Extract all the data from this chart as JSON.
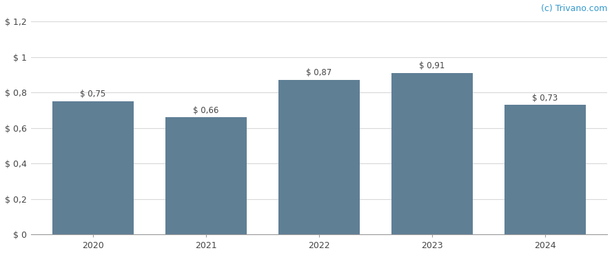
{
  "categories": [
    "2020",
    "2021",
    "2022",
    "2023",
    "2024"
  ],
  "values": [
    0.75,
    0.66,
    0.87,
    0.91,
    0.73
  ],
  "labels": [
    "$ 0,75",
    "$ 0,66",
    "$ 0,87",
    "$ 0,91",
    "$ 0,73"
  ],
  "bar_color": "#5f7f95",
  "background_color": "#ffffff",
  "ylim": [
    0,
    1.2
  ],
  "yticks": [
    0,
    0.2,
    0.4,
    0.6,
    0.8,
    1.0,
    1.2
  ],
  "ytick_labels": [
    "$ 0",
    "$ 0,2",
    "$ 0,4",
    "$ 0,6",
    "$ 0,8",
    "$ 1",
    "$ 1,2"
  ],
  "grid_color": "#d8d8d8",
  "watermark": "(c) Trivano.com",
  "watermark_color": "#3399cc",
  "label_fontsize": 8.5,
  "tick_fontsize": 9,
  "watermark_fontsize": 9,
  "bar_width": 0.72
}
